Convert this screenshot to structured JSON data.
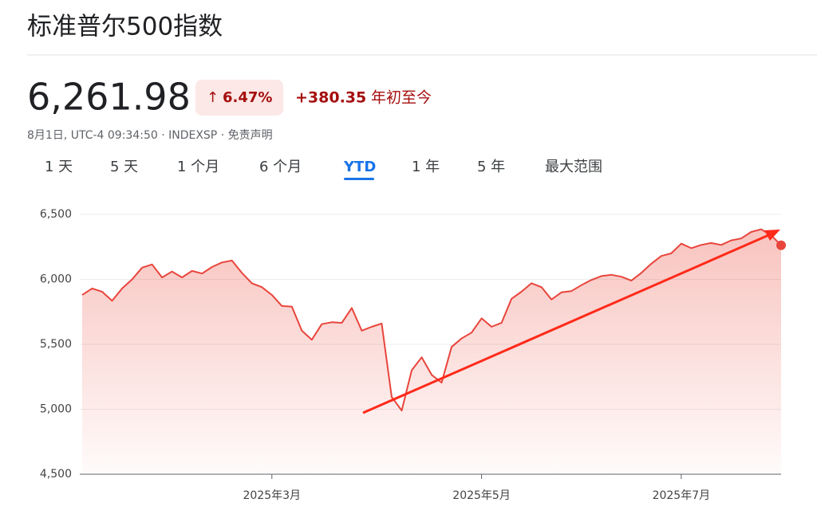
{
  "header": {
    "title": "标准普尔500指数"
  },
  "quote": {
    "price": "6,261.98",
    "change_percent": "6.47%",
    "change": "+380.35",
    "period": "年初至今",
    "meta": "8月1日, UTC-4 09:34:50 · INDEXSP · 免责声明"
  },
  "tabs": [
    "1 天",
    "5 天",
    "1 个月",
    "6 个月",
    "YTD",
    "1 年",
    "5 年",
    "最大范围"
  ],
  "chart_data": {
    "type": "line",
    "color": "#e8453c",
    "grid": true,
    "ylim": [
      4500,
      6500
    ],
    "yticks": [
      {
        "value": 4500,
        "label": "4,500"
      },
      {
        "value": 5000,
        "label": "5,000"
      },
      {
        "value": 5500,
        "label": "5,500"
      },
      {
        "value": 6000,
        "label": "6,000"
      },
      {
        "value": 6500,
        "label": "6,500"
      }
    ],
    "categories": [
      null,
      null,
      null,
      null,
      null,
      null,
      null,
      null,
      null,
      null,
      null,
      null,
      null,
      null,
      null,
      null,
      null,
      null,
      null,
      "2025年3月",
      null,
      null,
      null,
      null,
      null,
      null,
      null,
      null,
      null,
      null,
      null,
      null,
      null,
      null,
      null,
      null,
      null,
      null,
      null,
      null,
      "2025年5月",
      null,
      null,
      null,
      null,
      null,
      null,
      null,
      null,
      null,
      null,
      null,
      null,
      null,
      null,
      null,
      null,
      null,
      null,
      null,
      "2025年7月",
      null,
      null,
      null,
      null,
      null,
      null,
      null,
      null,
      null,
      null
    ],
    "values": [
      5880,
      5930,
      5905,
      5835,
      5930,
      6000,
      6090,
      6115,
      6015,
      6060,
      6015,
      6065,
      6045,
      6095,
      6130,
      6145,
      6050,
      5970,
      5940,
      5880,
      5795,
      5790,
      5605,
      5535,
      5655,
      5670,
      5665,
      5780,
      5605,
      5635,
      5660,
      5095,
      4990,
      5300,
      5400,
      5265,
      5205,
      5480,
      5545,
      5590,
      5700,
      5635,
      5665,
      5850,
      5905,
      5970,
      5940,
      5845,
      5900,
      5910,
      5955,
      5995,
      6025,
      6035,
      6020,
      5990,
      6050,
      6120,
      6180,
      6200,
      6275,
      6240,
      6265,
      6280,
      6265,
      6300,
      6315,
      6365,
      6385,
      6340,
      6262
    ]
  }
}
